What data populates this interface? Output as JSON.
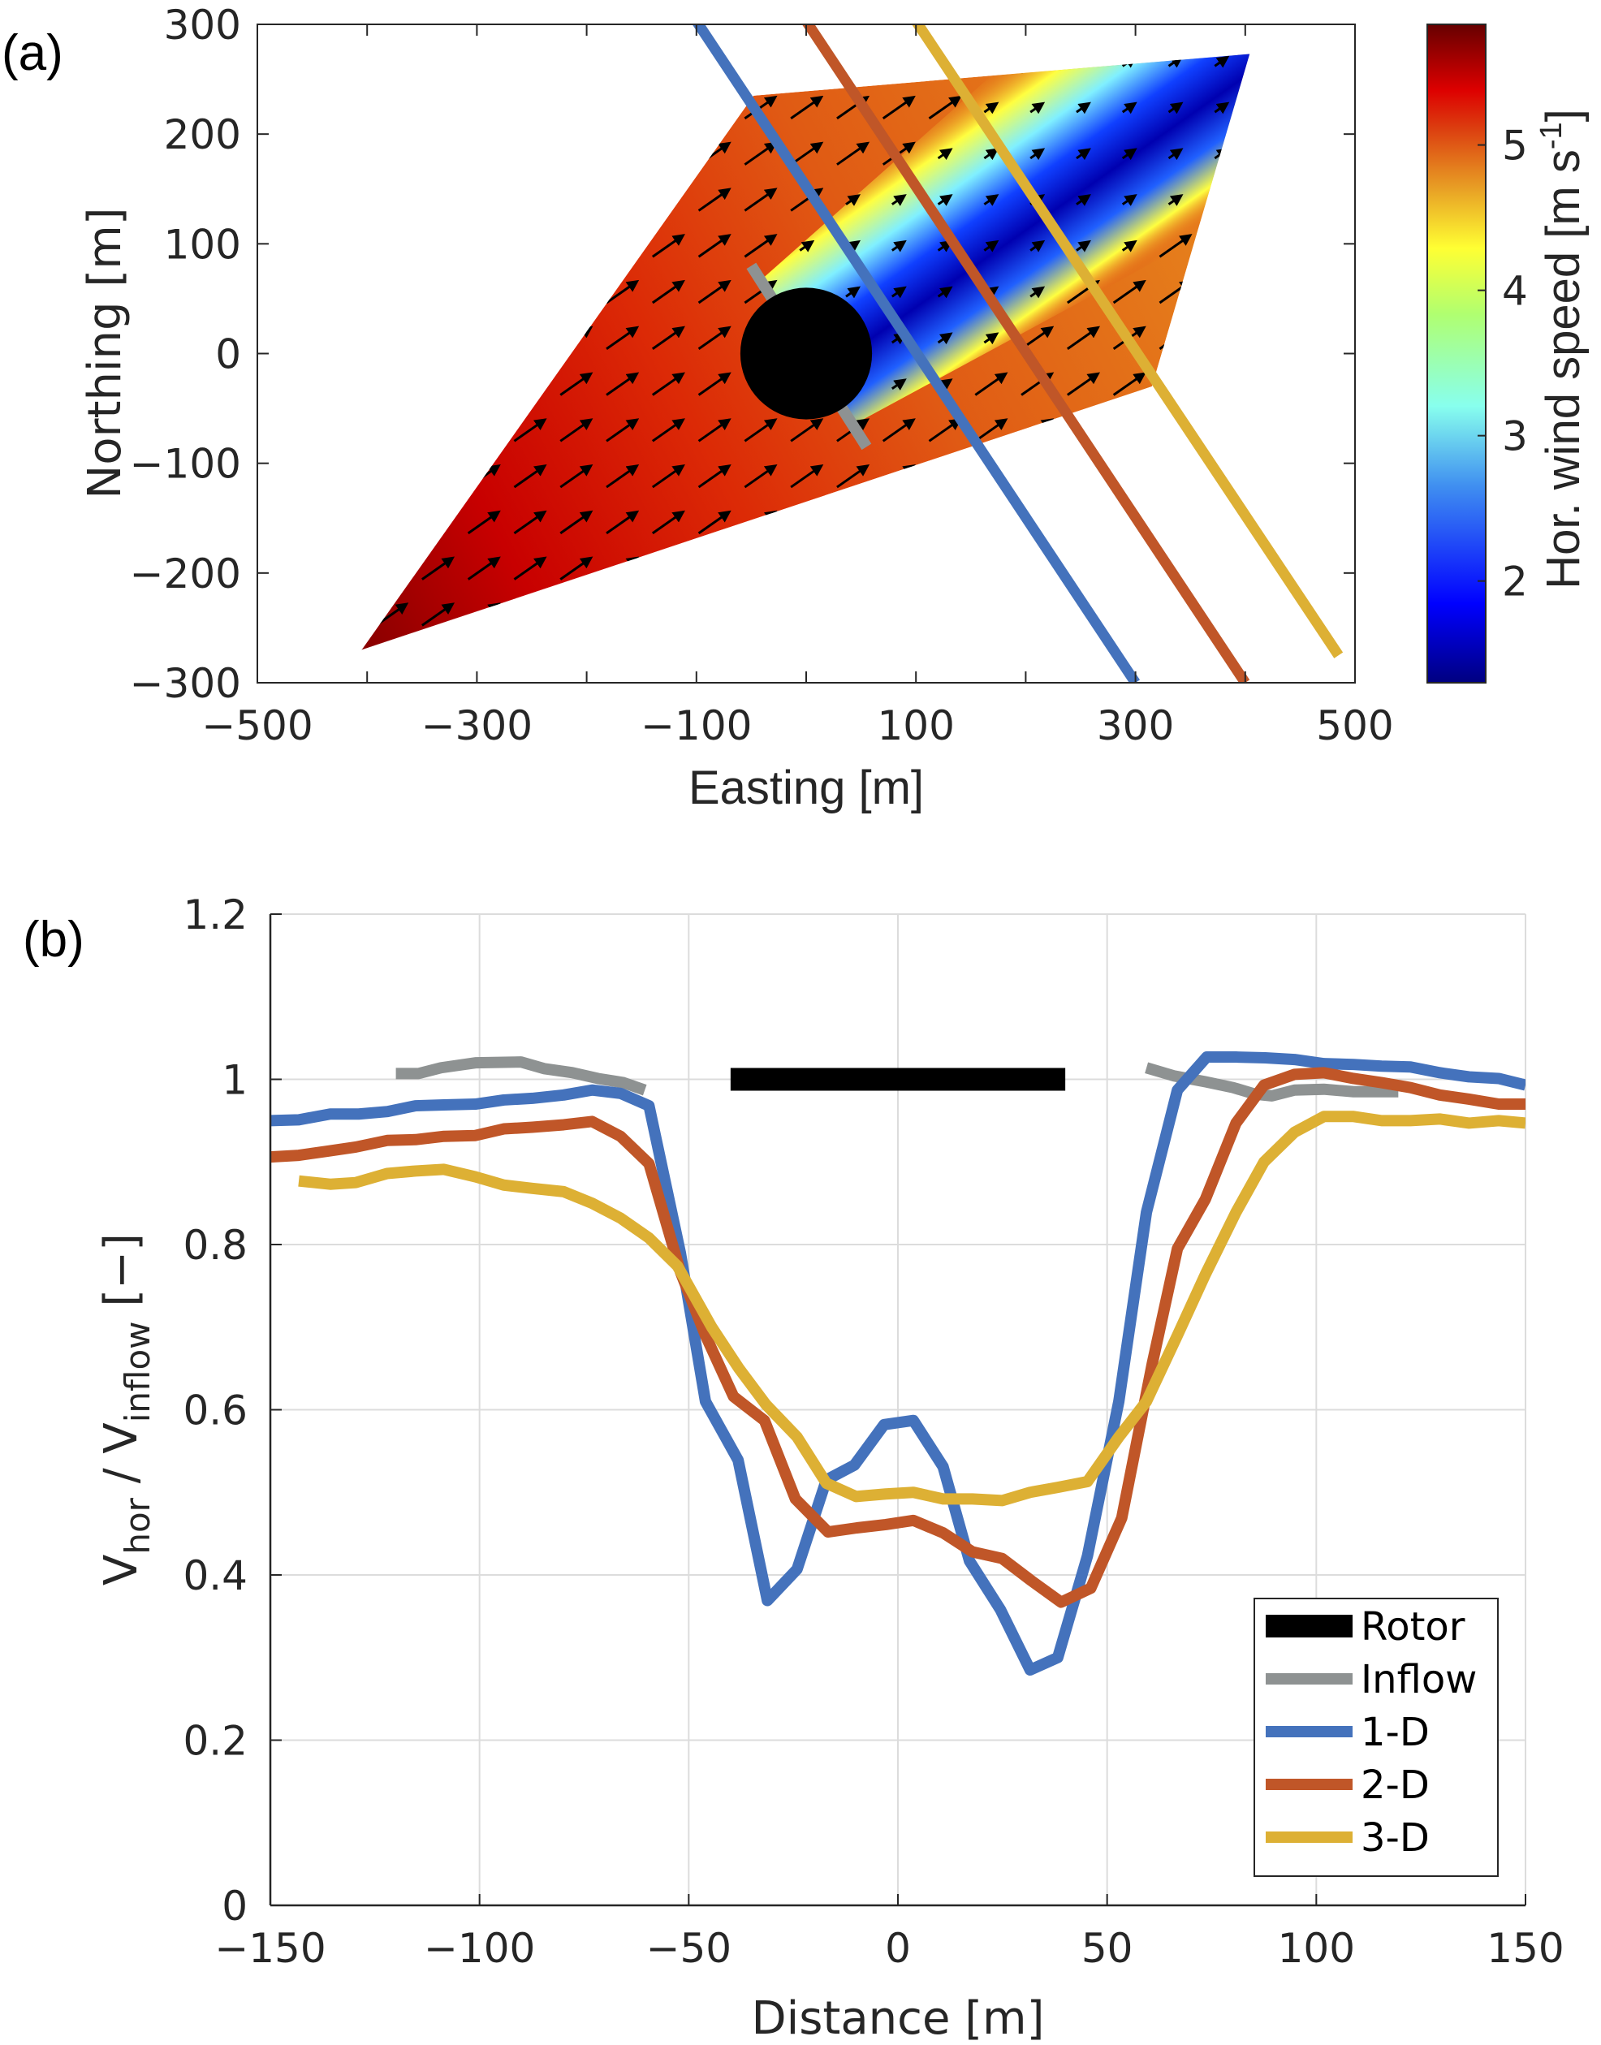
{
  "figure": {
    "panel_a_label": "(a)",
    "panel_b_label": "(b)"
  },
  "chart_data": [
    {
      "id": "panel-a",
      "type": "heatmap",
      "title": "",
      "xlabel": "Easting [m]",
      "ylabel": "Northing [m]",
      "xlim": [
        -500,
        500
      ],
      "ylim": [
        -300,
        300
      ],
      "xticks": [
        -500,
        -400,
        -300,
        -200,
        -100,
        0,
        100,
        200,
        300,
        400,
        500
      ],
      "xtick_labels": [
        "−500",
        "",
        "−300",
        "",
        "−100",
        "",
        "100",
        "",
        "300",
        "",
        "500"
      ],
      "yticks": [
        300,
        200,
        100,
        0,
        -100,
        -200,
        -300
      ],
      "ytick_labels": [
        "300",
        "200",
        "100",
        "0",
        "−100",
        "−200",
        "−300"
      ],
      "colorbar": {
        "label": "Hor. wind speed [m s",
        "label_sup": "-1",
        "label_end": "]",
        "range": [
          1.3,
          5.83
        ],
        "ticks": [
          2,
          3,
          4,
          5
        ],
        "tick_labels": [
          "2",
          "3",
          "4",
          "5"
        ],
        "colormap": "jet"
      },
      "scan_area_corners": [
        [
          -405,
          -270
        ],
        [
          -48,
          235
        ],
        [
          404,
          273
        ],
        [
          315,
          -30
        ]
      ],
      "rotor": {
        "center": [
          0,
          0
        ],
        "radius": 60,
        "color": "#000000"
      },
      "inflow_line": {
        "from": [
          -50,
          80
        ],
        "to": [
          55,
          -85
        ],
        "color": "#8e9292"
      },
      "transects": [
        {
          "name": "1-D",
          "from": [
            -100,
            300
          ],
          "to": [
            300,
            -300
          ],
          "color": "#4472bc"
        },
        {
          "name": "2-D",
          "from": [
            0,
            300
          ],
          "to": [
            400,
            -300
          ],
          "color": "#c05628"
        },
        {
          "name": "3-D",
          "from": [
            100,
            300
          ],
          "to": [
            485,
            -275
          ],
          "color": "#ddb034"
        }
      ],
      "wind_direction_deg_from_east": 35,
      "wake_description": "low wind speed wake (~1.5–3 m/s) extends from rotor toward north-east; ambient ~5–5.8 m/s in south-west"
    },
    {
      "id": "panel-b",
      "type": "line",
      "title": "",
      "xlabel": "Distance [m]",
      "ylabel_main": "V",
      "ylabel_sub1": "hor",
      "ylabel_mid": " / V",
      "ylabel_sub2": "inflow",
      "ylabel_end": " [−]",
      "xlim": [
        -150,
        150
      ],
      "ylim": [
        0,
        1.2
      ],
      "grid": true,
      "xticks": [
        -150,
        -100,
        -50,
        0,
        50,
        100,
        150
      ],
      "xtick_labels": [
        "−150",
        "−100",
        "−50",
        "0",
        "50",
        "100",
        "150"
      ],
      "yticks": [
        0,
        0.2,
        0.4,
        0.6,
        0.8,
        1,
        1.2
      ],
      "ytick_labels": [
        "0",
        "0.2",
        "0.4",
        "0.6",
        "0.8",
        "1",
        "1.2"
      ],
      "legend_position": "bottom-right",
      "series": [
        {
          "name": "Rotor",
          "color": "#000000",
          "kind": "bar",
          "x": [
            -40,
            40
          ],
          "y": [
            1.0,
            1.0
          ]
        },
        {
          "name": "Inflow",
          "color": "#8e9292",
          "kind": "segments",
          "segments": [
            {
              "x": [
                -120,
                -114.6,
                -109.2,
                -101,
                -90.1,
                -84.6,
                -77.8,
                -71.7,
                -65.6,
                -60.5
              ],
              "y": [
                1.007,
                1.007,
                1.014,
                1.02,
                1.021,
                1.013,
                1.008,
                1.001,
                0.996,
                0.987
              ]
            },
            {
              "x": [
                59.4,
                66.1,
                73.5,
                80.1,
                85.4,
                89.4,
                94.8,
                101.8,
                108.9,
                119.6
              ],
              "y": [
                1.014,
                1.004,
                0.997,
                0.99,
                0.982,
                0.98,
                0.987,
                0.988,
                0.985,
                0.985
              ]
            }
          ]
        },
        {
          "name": "1-D",
          "color": "#4472bc",
          "kind": "line",
          "x": [
            -150,
            -143.2,
            -135.7,
            -128.9,
            -122,
            -115.3,
            -108.5,
            -101,
            -94.2,
            -87.4,
            -79.9,
            -73.1,
            -66.3,
            -59.5,
            -52,
            -46,
            -38.2,
            -31.2,
            -24.1,
            -17.1,
            -10.4,
            -3.3,
            3.7,
            10.8,
            17.1,
            24.5,
            31.6,
            38.2,
            45.3,
            52.8,
            59.4,
            66.8,
            73.8,
            80.8,
            87.8,
            94.8,
            101.8,
            108.9,
            115.6,
            122.5,
            129.5,
            136.5,
            143.6,
            150
          ],
          "y": [
            0.95,
            0.951,
            0.958,
            0.958,
            0.961,
            0.968,
            0.969,
            0.97,
            0.975,
            0.977,
            0.981,
            0.987,
            0.983,
            0.968,
            0.79,
            0.61,
            0.539,
            0.369,
            0.407,
            0.515,
            0.533,
            0.582,
            0.587,
            0.531,
            0.417,
            0.358,
            0.285,
            0.3,
            0.423,
            0.61,
            0.839,
            0.987,
            1.027,
            1.027,
            1.026,
            1.024,
            1.019,
            1.018,
            1.016,
            1.015,
            1.008,
            1.003,
            1.001,
            0.993
          ]
        },
        {
          "name": "2-D",
          "color": "#c05628",
          "kind": "line",
          "x": [
            -150,
            -143.2,
            -136.4,
            -129.6,
            -122.1,
            -115.3,
            -108.5,
            -101,
            -94.2,
            -87.4,
            -79.9,
            -73.1,
            -66.3,
            -59.5,
            -52,
            -46,
            -39.3,
            -31.9,
            -24.5,
            -16.7,
            -9.8,
            -2.9,
            3.7,
            10.8,
            17.8,
            24.9,
            31.9,
            39,
            46.1,
            53.5,
            60.8,
            66.8,
            73.5,
            80.8,
            87.5,
            94.8,
            101.8,
            108.9,
            115.6,
            122.5,
            129.5,
            136.5,
            143.6,
            150
          ],
          "y": [
            0.906,
            0.908,
            0.913,
            0.918,
            0.926,
            0.927,
            0.931,
            0.932,
            0.94,
            0.942,
            0.945,
            0.949,
            0.931,
            0.898,
            0.767,
            0.69,
            0.616,
            0.587,
            0.492,
            0.452,
            0.457,
            0.461,
            0.466,
            0.451,
            0.428,
            0.42,
            0.393,
            0.367,
            0.384,
            0.469,
            0.656,
            0.795,
            0.855,
            0.947,
            0.993,
            1.006,
            1.008,
            1.001,
            0.996,
            0.99,
            0.981,
            0.976,
            0.97,
            0.97
          ]
        },
        {
          "name": "3-D",
          "color": "#ddb034",
          "kind": "line",
          "x": [
            -143.2,
            -135.7,
            -129.6,
            -122.1,
            -115.3,
            -108.5,
            -101,
            -94.2,
            -87.4,
            -79.9,
            -73.1,
            -66.3,
            -59.5,
            -52.7,
            -44.5,
            -38,
            -31.5,
            -24.1,
            -17.1,
            -10,
            -2.9,
            3.7,
            10.8,
            17.8,
            24.9,
            31.6,
            38.2,
            45.3,
            52.8,
            59.4,
            66.8,
            73.5,
            80.8,
            87.5,
            94.8,
            101.8,
            108.9,
            115.6,
            122.5,
            129.5,
            136.5,
            143.6,
            150
          ],
          "y": [
            0.877,
            0.873,
            0.875,
            0.886,
            0.889,
            0.891,
            0.882,
            0.872,
            0.868,
            0.864,
            0.85,
            0.832,
            0.808,
            0.774,
            0.7,
            0.65,
            0.606,
            0.567,
            0.511,
            0.495,
            0.498,
            0.5,
            0.492,
            0.492,
            0.49,
            0.5,
            0.506,
            0.513,
            0.567,
            0.61,
            0.69,
            0.764,
            0.839,
            0.9,
            0.936,
            0.955,
            0.955,
            0.95,
            0.95,
            0.952,
            0.947,
            0.95,
            0.947
          ]
        }
      ],
      "legend": [
        {
          "label": "Rotor",
          "color": "#000000"
        },
        {
          "label": "Inflow",
          "color": "#8e9292"
        },
        {
          "label": "1-D",
          "color": "#4472bc"
        },
        {
          "label": "2-D",
          "color": "#c05628"
        },
        {
          "label": "3-D",
          "color": "#ddb034"
        }
      ]
    }
  ]
}
